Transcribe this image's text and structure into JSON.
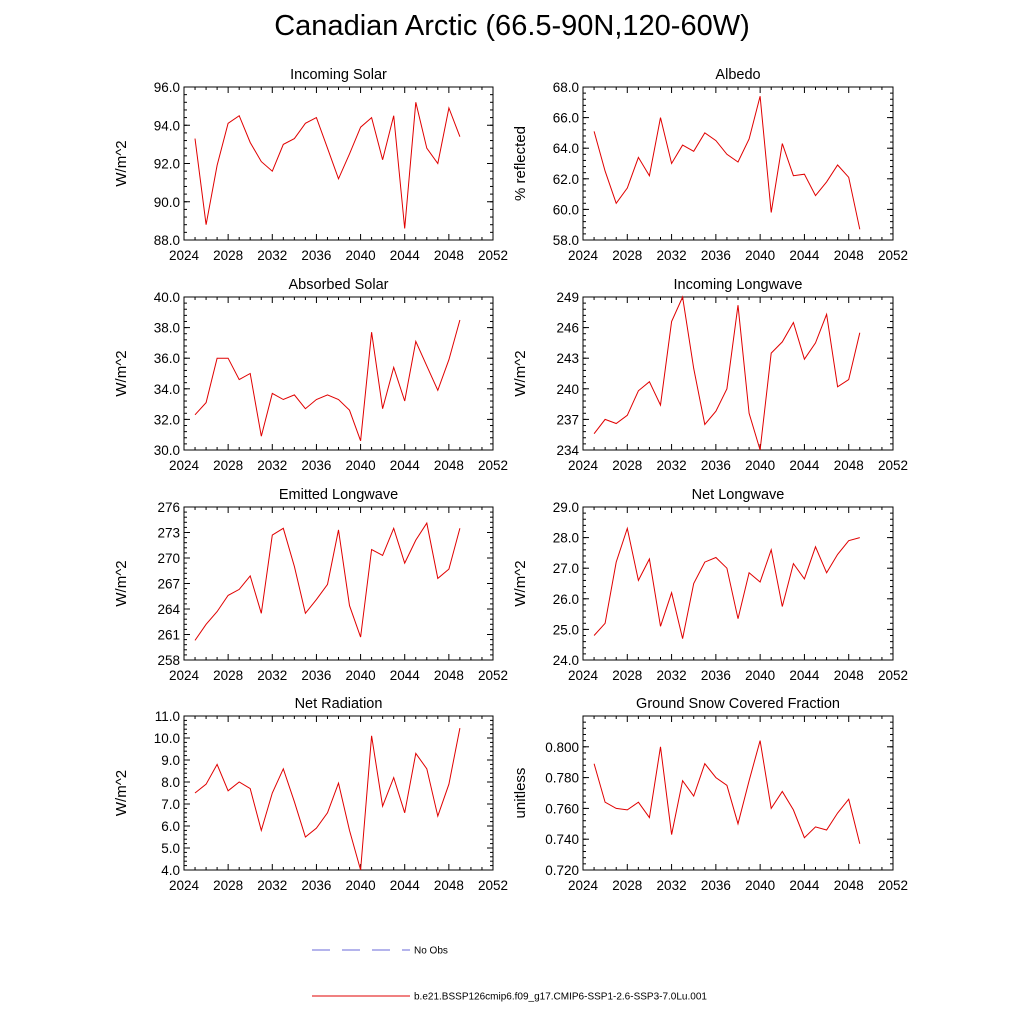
{
  "title": "Canadian Arctic (66.5-90N,120-60W)",
  "legend": {
    "obs_label": "No Obs",
    "obs_color": "#6a6ad8",
    "model_label": "b.e21.BSSP126cmip6.f09_g17.CMIP6-SSP1-2.6-SSP3-7.0Lu.001",
    "model_color": "#e00000"
  },
  "chart_data": [
    {
      "type": "line",
      "title": "Incoming Solar",
      "ylabel": "W/m^2",
      "xlim": [
        2024,
        2052
      ],
      "ylim": [
        88.0,
        96.0
      ],
      "xticks": [
        "2024",
        "2028",
        "2032",
        "2036",
        "2040",
        "2044",
        "2048",
        "2052"
      ],
      "yticks": [
        "88.0",
        "90.0",
        "92.0",
        "94.0",
        "96.0"
      ],
      "series": [
        {
          "x": [
            2025,
            2026,
            2027,
            2028,
            2029,
            2030,
            2031,
            2032,
            2033,
            2034,
            2035,
            2036,
            2037,
            2038,
            2039,
            2040,
            2041,
            2042,
            2043,
            2044,
            2045,
            2046,
            2047,
            2048,
            2049
          ],
          "values": [
            93.3,
            88.8,
            91.9,
            94.1,
            94.5,
            93.1,
            92.1,
            91.6,
            93.0,
            93.3,
            94.1,
            94.4,
            92.8,
            91.2,
            92.5,
            93.9,
            94.4,
            92.2,
            94.5,
            88.6,
            95.2,
            92.8,
            92.0,
            94.9,
            93.4
          ]
        }
      ]
    },
    {
      "type": "line",
      "title": "Albedo",
      "ylabel": "% reflected",
      "xlim": [
        2024,
        2052
      ],
      "ylim": [
        58.0,
        68.0
      ],
      "xticks": [
        "2024",
        "2028",
        "2032",
        "2036",
        "2040",
        "2044",
        "2048",
        "2052"
      ],
      "yticks": [
        "58.0",
        "60.0",
        "62.0",
        "64.0",
        "66.0",
        "68.0"
      ],
      "series": [
        {
          "x": [
            2025,
            2026,
            2027,
            2028,
            2029,
            2030,
            2031,
            2032,
            2033,
            2034,
            2035,
            2036,
            2037,
            2038,
            2039,
            2040,
            2041,
            2042,
            2043,
            2044,
            2045,
            2046,
            2047,
            2048,
            2049
          ],
          "values": [
            65.1,
            62.5,
            60.4,
            61.4,
            63.4,
            62.2,
            66.0,
            63.0,
            64.2,
            63.8,
            65.0,
            64.5,
            63.6,
            63.1,
            64.6,
            67.4,
            59.8,
            64.3,
            62.2,
            62.3,
            60.9,
            61.8,
            62.9,
            62.1,
            58.7
          ]
        }
      ]
    },
    {
      "type": "line",
      "title": "Absorbed Solar",
      "ylabel": "W/m^2",
      "xlim": [
        2024,
        2052
      ],
      "ylim": [
        30.0,
        40.0
      ],
      "xticks": [
        "2024",
        "2028",
        "2032",
        "2036",
        "2040",
        "2044",
        "2048",
        "2052"
      ],
      "yticks": [
        "30.0",
        "32.0",
        "34.0",
        "36.0",
        "38.0",
        "40.0"
      ],
      "series": [
        {
          "x": [
            2025,
            2026,
            2027,
            2028,
            2029,
            2030,
            2031,
            2032,
            2033,
            2034,
            2035,
            2036,
            2037,
            2038,
            2039,
            2040,
            2041,
            2042,
            2043,
            2044,
            2045,
            2046,
            2047,
            2048,
            2049
          ],
          "values": [
            32.3,
            33.1,
            36.0,
            36.0,
            34.6,
            35.0,
            30.9,
            33.7,
            33.3,
            33.6,
            32.7,
            33.3,
            33.6,
            33.3,
            32.6,
            30.6,
            37.7,
            32.7,
            35.4,
            33.2,
            37.1,
            35.5,
            33.9,
            35.9,
            38.5
          ]
        }
      ]
    },
    {
      "type": "line",
      "title": "Incoming Longwave",
      "ylabel": "W/m^2",
      "xlim": [
        2024,
        2052
      ],
      "ylim": [
        234,
        249
      ],
      "xticks": [
        "2024",
        "2028",
        "2032",
        "2036",
        "2040",
        "2044",
        "2048",
        "2052"
      ],
      "yticks": [
        "234",
        "237",
        "240",
        "243",
        "246",
        "249"
      ],
      "series": [
        {
          "x": [
            2025,
            2026,
            2027,
            2028,
            2029,
            2030,
            2031,
            2032,
            2033,
            2034,
            2035,
            2036,
            2037,
            2038,
            2039,
            2040,
            2041,
            2042,
            2043,
            2044,
            2045,
            2046,
            2047,
            2048,
            2049
          ],
          "values": [
            235.6,
            237.0,
            236.6,
            237.4,
            239.8,
            240.7,
            238.4,
            246.6,
            249.0,
            242.0,
            236.5,
            237.8,
            240.0,
            248.2,
            237.6,
            234.0,
            243.5,
            244.6,
            246.5,
            242.9,
            244.5,
            247.3,
            240.2,
            240.9,
            245.5
          ]
        }
      ]
    },
    {
      "type": "line",
      "title": "Emitted Longwave",
      "ylabel": "W/m^2",
      "xlim": [
        2024,
        2052
      ],
      "ylim": [
        258,
        276
      ],
      "xticks": [
        "2024",
        "2028",
        "2032",
        "2036",
        "2040",
        "2044",
        "2048",
        "2052"
      ],
      "yticks": [
        "258",
        "261",
        "264",
        "267",
        "270",
        "273",
        "276"
      ],
      "series": [
        {
          "x": [
            2025,
            2026,
            2027,
            2028,
            2029,
            2030,
            2031,
            2032,
            2033,
            2034,
            2035,
            2036,
            2037,
            2038,
            2039,
            2040,
            2041,
            2042,
            2043,
            2044,
            2045,
            2046,
            2047,
            2048,
            2049
          ],
          "values": [
            260.3,
            262.2,
            263.7,
            265.6,
            266.3,
            267.9,
            263.5,
            272.7,
            273.5,
            269.0,
            263.5,
            265.1,
            266.9,
            273.3,
            264.4,
            260.7,
            271.0,
            270.3,
            273.5,
            269.4,
            272.1,
            274.1,
            267.6,
            268.7,
            273.5
          ]
        }
      ]
    },
    {
      "type": "line",
      "title": "Net Longwave",
      "ylabel": "W/m^2",
      "xlim": [
        2024,
        2052
      ],
      "ylim": [
        24.0,
        29.0
      ],
      "xticks": [
        "2024",
        "2028",
        "2032",
        "2036",
        "2040",
        "2044",
        "2048",
        "2052"
      ],
      "yticks": [
        "24.0",
        "25.0",
        "26.0",
        "27.0",
        "28.0",
        "29.0"
      ],
      "series": [
        {
          "x": [
            2025,
            2026,
            2027,
            2028,
            2029,
            2030,
            2031,
            2032,
            2033,
            2034,
            2035,
            2036,
            2037,
            2038,
            2039,
            2040,
            2041,
            2042,
            2043,
            2044,
            2045,
            2046,
            2047,
            2048,
            2049
          ],
          "values": [
            24.8,
            25.2,
            27.2,
            28.3,
            26.6,
            27.3,
            25.1,
            26.2,
            24.7,
            26.5,
            27.2,
            27.35,
            27.0,
            25.35,
            26.85,
            26.55,
            27.6,
            25.75,
            27.15,
            26.65,
            27.7,
            26.85,
            27.45,
            27.9,
            28.0
          ]
        }
      ]
    },
    {
      "type": "line",
      "title": "Net Radiation",
      "ylabel": "W/m^2",
      "xlim": [
        2024,
        2052
      ],
      "ylim": [
        4.0,
        11.0
      ],
      "xticks": [
        "2024",
        "2028",
        "2032",
        "2036",
        "2040",
        "2044",
        "2048",
        "2052"
      ],
      "yticks": [
        "4.0",
        "5.0",
        "6.0",
        "7.0",
        "8.0",
        "9.0",
        "10.0",
        "11.0"
      ],
      "series": [
        {
          "x": [
            2025,
            2026,
            2027,
            2028,
            2029,
            2030,
            2031,
            2032,
            2033,
            2034,
            2035,
            2036,
            2037,
            2038,
            2039,
            2040,
            2041,
            2042,
            2043,
            2044,
            2045,
            2046,
            2047,
            2048,
            2049
          ],
          "values": [
            7.5,
            7.9,
            8.8,
            7.6,
            8.0,
            7.7,
            5.8,
            7.5,
            8.6,
            7.1,
            5.5,
            5.9,
            6.6,
            7.95,
            5.8,
            4.0,
            10.1,
            6.9,
            8.2,
            6.6,
            9.3,
            8.6,
            6.45,
            7.9,
            10.45
          ]
        }
      ]
    },
    {
      "type": "line",
      "title": "Ground Snow Covered Fraction",
      "ylabel": "unitless",
      "xlim": [
        2024,
        2052
      ],
      "ylim": [
        0.72,
        0.82
      ],
      "xticks": [
        "2024",
        "2028",
        "2032",
        "2036",
        "2040",
        "2044",
        "2048",
        "2052"
      ],
      "yticks": [
        "0.720",
        "0.740",
        "0.760",
        "0.780",
        "0.800"
      ],
      "series": [
        {
          "x": [
            2025,
            2026,
            2027,
            2028,
            2029,
            2030,
            2031,
            2032,
            2033,
            2034,
            2035,
            2036,
            2037,
            2038,
            2039,
            2040,
            2041,
            2042,
            2043,
            2044,
            2045,
            2046,
            2047,
            2048,
            2049
          ],
          "values": [
            0.789,
            0.764,
            0.76,
            0.759,
            0.764,
            0.754,
            0.8,
            0.743,
            0.778,
            0.768,
            0.789,
            0.78,
            0.775,
            0.75,
            0.778,
            0.804,
            0.76,
            0.771,
            0.759,
            0.741,
            0.748,
            0.746,
            0.757,
            0.766,
            0.737
          ]
        }
      ]
    }
  ]
}
